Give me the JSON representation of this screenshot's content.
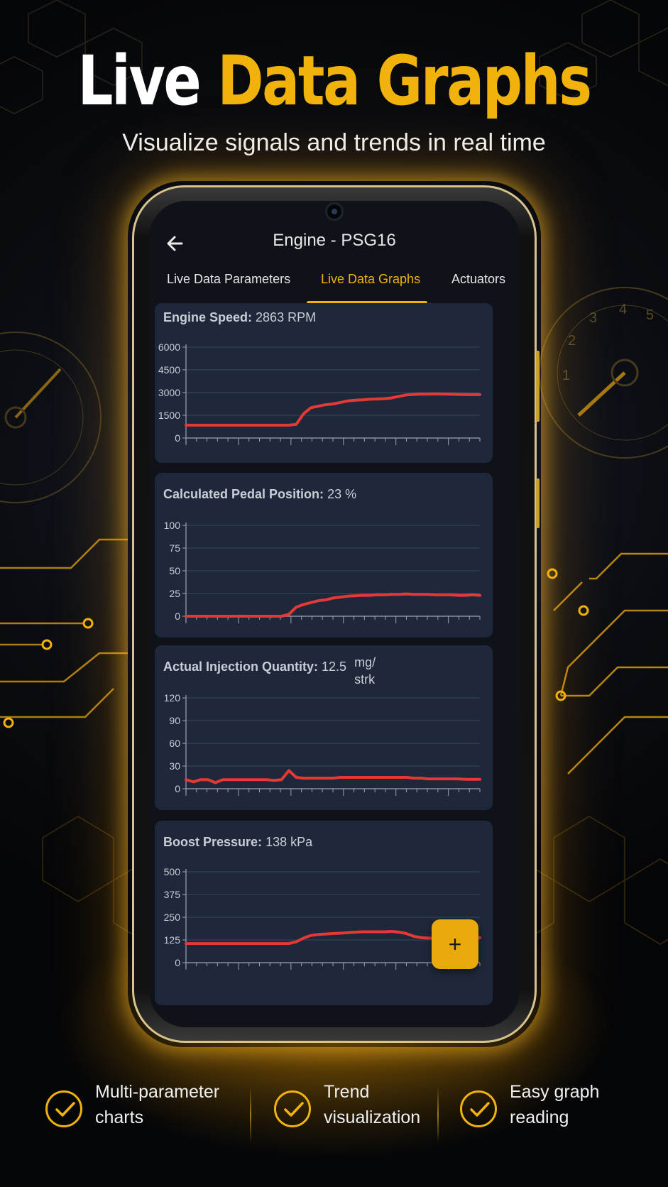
{
  "hero": {
    "title_white": "Live",
    "title_yellow": "Data Graphs",
    "subtitle": "Visualize signals and trends in real time"
  },
  "app": {
    "title": "Engine - PSG16",
    "back_icon": "arrow-left-icon",
    "tabs": [
      {
        "label": "Live Data Parameters",
        "active": false
      },
      {
        "label": "Live Data Graphs",
        "active": true
      },
      {
        "label": "Actuators",
        "active": false
      }
    ],
    "fab_label": "+"
  },
  "chart_data": [
    {
      "type": "line",
      "title": "Engine Speed:",
      "value": "2863",
      "unit": "RPM",
      "yticks": [
        "6000",
        "4500",
        "3000",
        "1500",
        "0"
      ],
      "ylim": [
        0,
        6000
      ],
      "x": [
        0,
        1,
        2,
        3,
        4,
        5,
        6,
        7,
        8,
        9,
        10,
        11,
        12,
        13,
        14,
        15,
        16,
        17,
        18,
        19,
        20,
        21,
        22,
        23,
        24,
        25,
        26,
        27,
        28,
        29,
        30,
        31,
        32,
        33,
        34,
        35,
        36,
        37,
        38,
        39,
        40
      ],
      "values": [
        850,
        850,
        850,
        850,
        850,
        850,
        850,
        850,
        850,
        850,
        850,
        850,
        850,
        850,
        850,
        900,
        1600,
        2000,
        2100,
        2200,
        2250,
        2350,
        2450,
        2500,
        2520,
        2560,
        2580,
        2600,
        2650,
        2750,
        2850,
        2880,
        2900,
        2900,
        2910,
        2900,
        2890,
        2880,
        2870,
        2863,
        2863
      ],
      "color": "#e53935"
    },
    {
      "type": "line",
      "title": "Calculated Pedal Position:",
      "value": "23",
      "unit": "%",
      "yticks": [
        "100",
        "75",
        "50",
        "25",
        "0"
      ],
      "ylim": [
        0,
        100
      ],
      "x": [
        0,
        1,
        2,
        3,
        4,
        5,
        6,
        7,
        8,
        9,
        10,
        11,
        12,
        13,
        14,
        15,
        16,
        17,
        18,
        19,
        20,
        21,
        22,
        23,
        24,
        25,
        26,
        27,
        28,
        29,
        30,
        31,
        32,
        33,
        34,
        35,
        36,
        37,
        38,
        39,
        40
      ],
      "values": [
        0,
        0,
        0,
        0,
        0,
        0,
        0,
        0,
        0,
        0,
        0,
        0,
        0,
        0,
        2,
        10,
        13,
        15,
        17,
        18,
        20,
        21,
        22,
        22.5,
        23,
        23,
        23.5,
        23.5,
        24,
        24,
        24.5,
        24,
        24,
        24,
        23.5,
        23.5,
        23.5,
        23,
        23,
        23.5,
        23
      ],
      "color": "#e53935"
    },
    {
      "type": "line",
      "title": "Actual Injection Quantity:",
      "value": "12.5",
      "unit": "mg/ strk",
      "yticks": [
        "120",
        "90",
        "60",
        "30",
        "0"
      ],
      "ylim": [
        0,
        120
      ],
      "x": [
        0,
        1,
        2,
        3,
        4,
        5,
        6,
        7,
        8,
        9,
        10,
        11,
        12,
        13,
        14,
        15,
        16,
        17,
        18,
        19,
        20,
        21,
        22,
        23,
        24,
        25,
        26,
        27,
        28,
        29,
        30,
        31,
        32,
        33,
        34,
        35,
        36,
        37,
        38,
        39,
        40
      ],
      "values": [
        12,
        9,
        12,
        12,
        8,
        12,
        12,
        12,
        12,
        12,
        12,
        12,
        11,
        12,
        24,
        15,
        14,
        14,
        14,
        14,
        14,
        15,
        15,
        15,
        15,
        15,
        15,
        15,
        15,
        15,
        15,
        14,
        14,
        13,
        13,
        13,
        13,
        13,
        12.5,
        12.5,
        12.5
      ],
      "color": "#e53935"
    },
    {
      "type": "line",
      "title": "Boost Pressure:",
      "value": "138",
      "unit": "kPa",
      "yticks": [
        "500",
        "375",
        "250",
        "125",
        "0"
      ],
      "ylim": [
        0,
        500
      ],
      "x": [
        0,
        1,
        2,
        3,
        4,
        5,
        6,
        7,
        8,
        9,
        10,
        11,
        12,
        13,
        14,
        15,
        16,
        17,
        18,
        19,
        20,
        21,
        22,
        23,
        24,
        25,
        26,
        27,
        28,
        29,
        30,
        31,
        32,
        33,
        34,
        35,
        36,
        37,
        38,
        39,
        40
      ],
      "values": [
        105,
        105,
        105,
        105,
        105,
        105,
        105,
        105,
        105,
        105,
        105,
        105,
        105,
        105,
        105,
        115,
        135,
        150,
        155,
        158,
        160,
        162,
        165,
        168,
        170,
        170,
        170,
        170,
        172,
        168,
        160,
        145,
        138,
        135,
        135,
        136,
        137,
        138,
        138,
        138,
        138
      ],
      "color": "#e53935"
    }
  ],
  "features": [
    {
      "icon": "check-circle-icon",
      "label": "Multi-parameter\ncharts"
    },
    {
      "icon": "check-circle-icon",
      "label": "Trend\nvisualization"
    },
    {
      "icon": "check-circle-icon",
      "label": "Easy graph\nreading"
    }
  ],
  "colors": {
    "accent": "#f2b20c",
    "line": "#e53935",
    "card": "#1f283a"
  }
}
